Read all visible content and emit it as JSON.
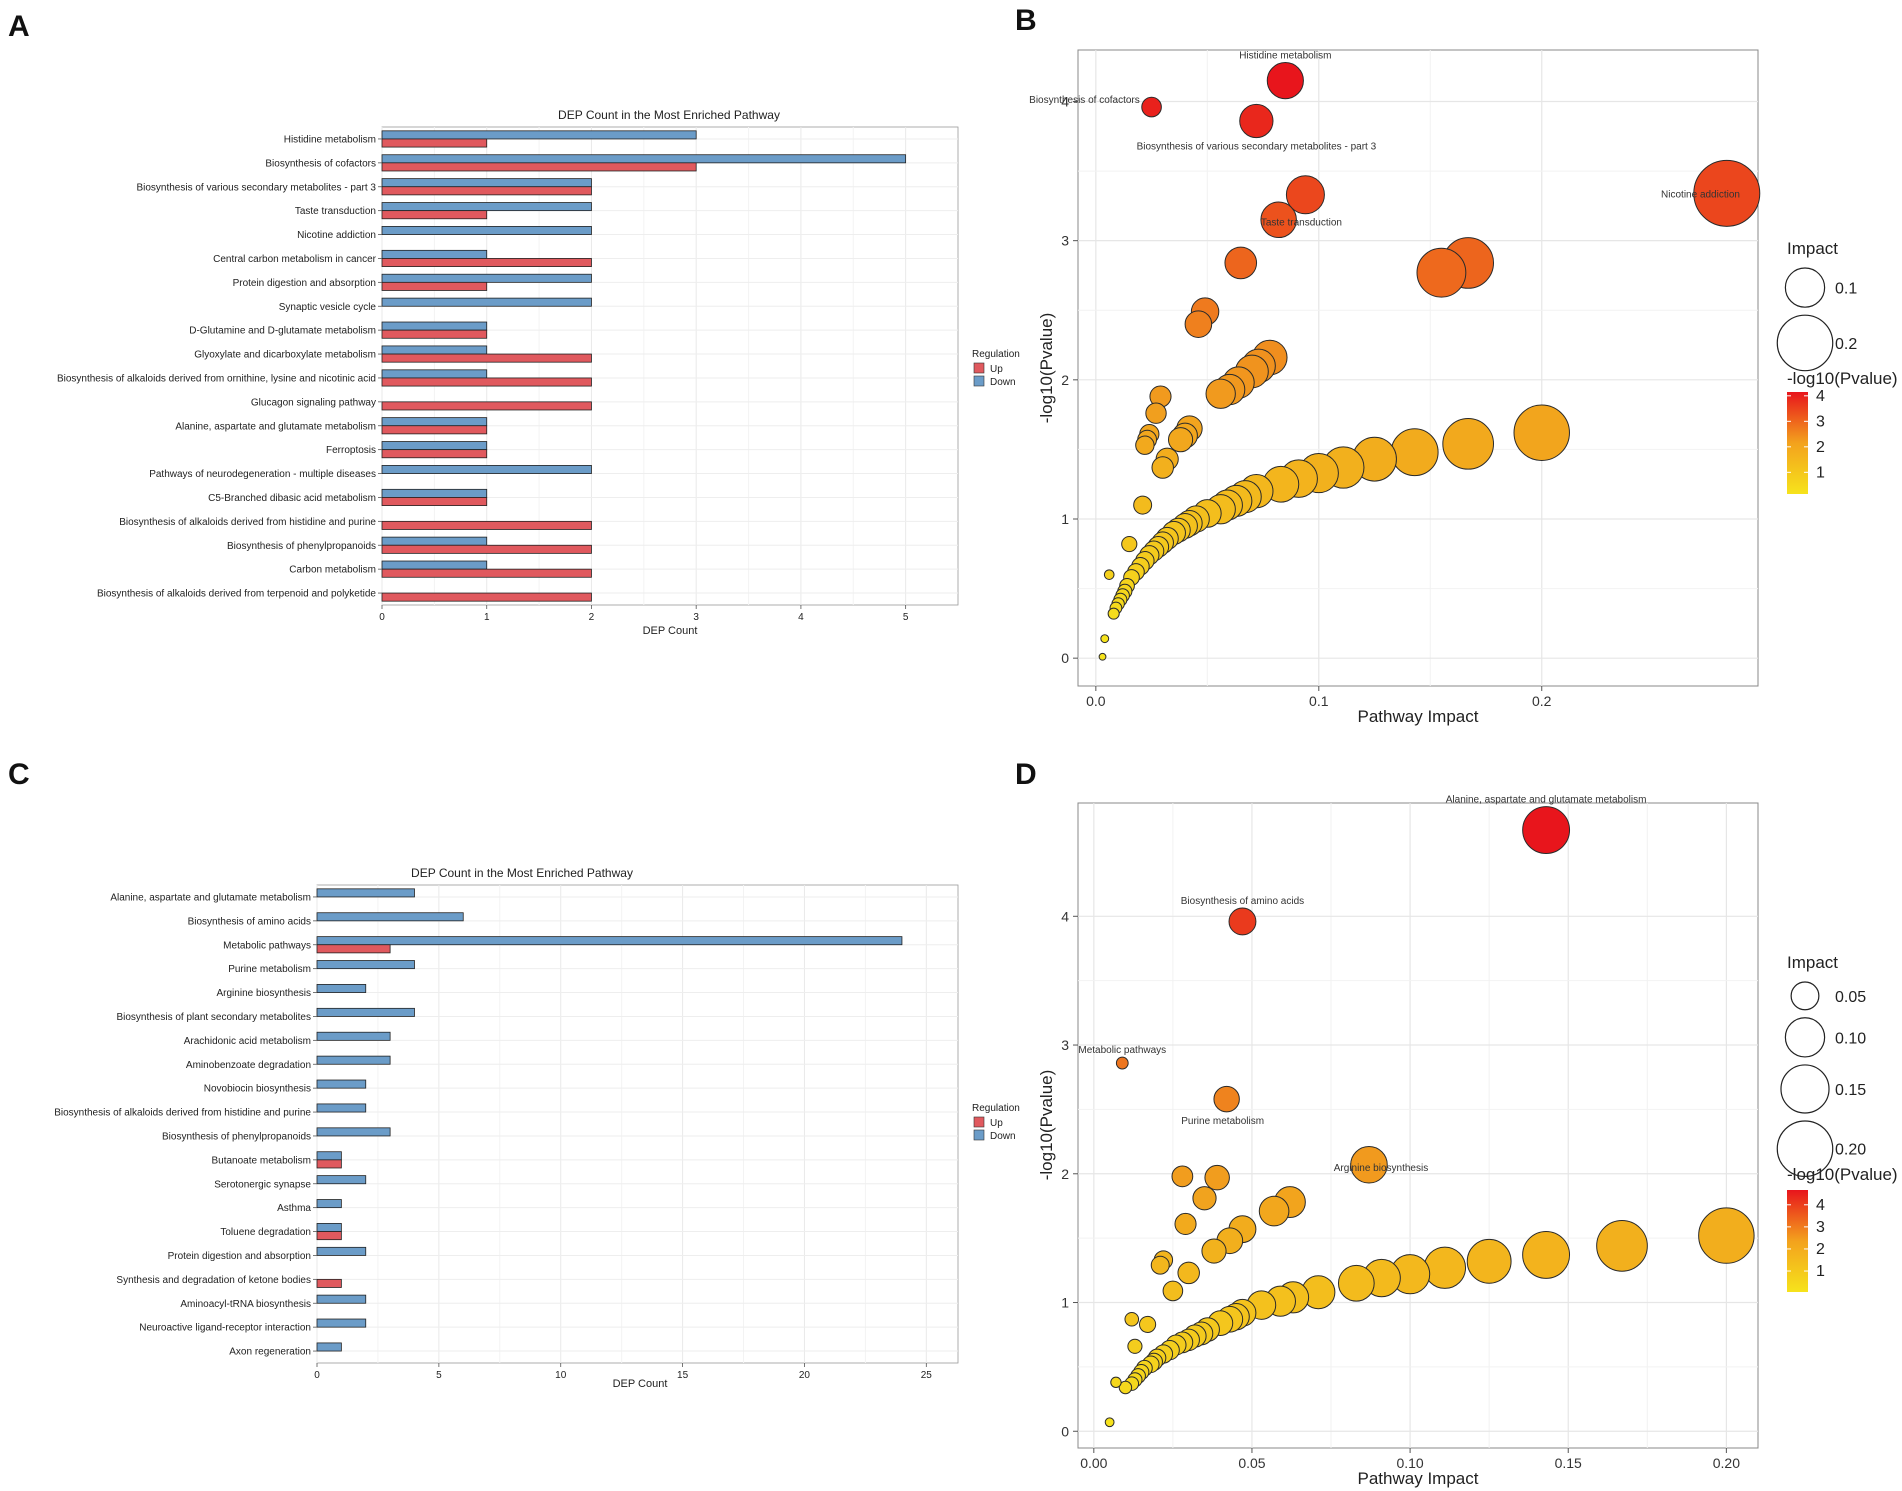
{
  "figure": {
    "panel_labels": [
      "A",
      "B",
      "C",
      "D"
    ]
  },
  "colors": {
    "up": "#e0595e",
    "down": "#6b9cc8",
    "bubble_high": "#e8151c",
    "bubble_mid": "#f08f1e",
    "bubble_low": "#f6e31c"
  },
  "chart_data": [
    {
      "panel": "A",
      "type": "bar",
      "orientation": "horizontal",
      "title": "DEP Count in the Most Enriched Pathway",
      "xlabel": "DEP Count",
      "ylabel": "",
      "xlim": [
        0,
        5.5
      ],
      "xticks": [
        0,
        1,
        2,
        3,
        4,
        5
      ],
      "legend": {
        "title": "Regulation",
        "entries": [
          "Up",
          "Down"
        ],
        "position": "right"
      },
      "categories": [
        "Histidine metabolism",
        "Biosynthesis of cofactors",
        "Biosynthesis of various secondary metabolites - part 3",
        "Taste transduction",
        "Nicotine addiction",
        "Central carbon metabolism in cancer",
        "Protein digestion and absorption",
        "Synaptic vesicle cycle",
        "D-Glutamine and D-glutamate metabolism",
        "Glyoxylate and dicarboxylate metabolism",
        "Biosynthesis of alkaloids derived from ornithine, lysine and nicotinic acid",
        "Glucagon signaling pathway",
        "Alanine, aspartate and glutamate metabolism",
        "Ferroptosis",
        "Pathways of neurodegeneration - multiple diseases",
        "C5-Branched dibasic acid metabolism",
        "Biosynthesis of alkaloids derived from histidine and purine",
        "Biosynthesis of phenylpropanoids",
        "Carbon metabolism",
        "Biosynthesis of alkaloids derived from terpenoid and polyketide"
      ],
      "series": [
        {
          "name": "Down",
          "values": [
            3,
            5,
            2,
            2,
            2,
            1,
            2,
            2,
            1,
            1,
            1,
            0,
            1,
            1,
            2,
            1,
            0,
            1,
            1,
            0
          ]
        },
        {
          "name": "Up",
          "values": [
            1,
            3,
            2,
            1,
            0,
            2,
            1,
            0,
            1,
            2,
            2,
            2,
            1,
            1,
            0,
            1,
            2,
            2,
            2,
            2
          ]
        }
      ]
    },
    {
      "panel": "B",
      "type": "scatter",
      "xlabel": "Pathway Impact",
      "ylabel": "-log10(Pvalue)",
      "xlim": [
        -0.008,
        0.297
      ],
      "ylim": [
        -0.2,
        4.37
      ],
      "xticks": [
        0.0,
        0.1,
        0.2
      ],
      "xtick_labels": [
        "0.0",
        "0.1",
        "0.2"
      ],
      "yticks": [
        0,
        1,
        2,
        3,
        4
      ],
      "size_legend": {
        "title": "Impact",
        "values": [
          0.1,
          0.2
        ],
        "labels": [
          "0.1",
          "0.2"
        ]
      },
      "color_legend": {
        "title": "-log10(Pvalue)",
        "ticks": [
          1,
          2,
          3,
          4
        ],
        "range": [
          0.15,
          4.15
        ]
      },
      "annotations": [
        {
          "label": "Histidine metabolism",
          "x": 0.085,
          "y": 4.15
        },
        {
          "label": "Biosynthesis of cofactors",
          "x": 0.025,
          "y": 3.96
        },
        {
          "label": "Biosynthesis of various secondary metabolites - part 3",
          "x": 0.072,
          "y": 3.86
        },
        {
          "label": "Taste transduction",
          "x": 0.094,
          "y": 3.33
        },
        {
          "label": "Nicotine addiction",
          "x": 0.283,
          "y": 3.34
        }
      ],
      "points": [
        {
          "x": 0.085,
          "y": 4.15
        },
        {
          "x": 0.025,
          "y": 3.96
        },
        {
          "x": 0.072,
          "y": 3.86
        },
        {
          "x": 0.283,
          "y": 3.34
        },
        {
          "x": 0.094,
          "y": 3.33
        },
        {
          "x": 0.082,
          "y": 3.15
        },
        {
          "x": 0.167,
          "y": 2.84
        },
        {
          "x": 0.065,
          "y": 2.84
        },
        {
          "x": 0.155,
          "y": 2.77
        },
        {
          "x": 0.049,
          "y": 2.49
        },
        {
          "x": 0.046,
          "y": 2.4
        },
        {
          "x": 0.078,
          "y": 2.16
        },
        {
          "x": 0.073,
          "y": 2.1
        },
        {
          "x": 0.07,
          "y": 2.06
        },
        {
          "x": 0.064,
          "y": 1.98
        },
        {
          "x": 0.06,
          "y": 1.93
        },
        {
          "x": 0.056,
          "y": 1.9
        },
        {
          "x": 0.029,
          "y": 1.88
        },
        {
          "x": 0.027,
          "y": 1.76
        },
        {
          "x": 0.042,
          "y": 1.65
        },
        {
          "x": 0.04,
          "y": 1.6
        },
        {
          "x": 0.038,
          "y": 1.57
        },
        {
          "x": 0.024,
          "y": 1.61
        },
        {
          "x": 0.023,
          "y": 1.57
        },
        {
          "x": 0.022,
          "y": 1.53
        },
        {
          "x": 0.2,
          "y": 1.62
        },
        {
          "x": 0.167,
          "y": 1.54
        },
        {
          "x": 0.143,
          "y": 1.48
        },
        {
          "x": 0.032,
          "y": 1.43
        },
        {
          "x": 0.125,
          "y": 1.43
        },
        {
          "x": 0.111,
          "y": 1.37
        },
        {
          "x": 0.03,
          "y": 1.37
        },
        {
          "x": 0.1,
          "y": 1.33
        },
        {
          "x": 0.091,
          "y": 1.29
        },
        {
          "x": 0.083,
          "y": 1.25
        },
        {
          "x": 0.072,
          "y": 1.2
        },
        {
          "x": 0.067,
          "y": 1.16
        },
        {
          "x": 0.063,
          "y": 1.13
        },
        {
          "x": 0.059,
          "y": 1.1
        },
        {
          "x": 0.056,
          "y": 1.07
        },
        {
          "x": 0.021,
          "y": 1.1
        },
        {
          "x": 0.05,
          "y": 1.04
        },
        {
          "x": 0.045,
          "y": 1.0
        },
        {
          "x": 0.042,
          "y": 0.97
        },
        {
          "x": 0.04,
          "y": 0.95
        },
        {
          "x": 0.037,
          "y": 0.92
        },
        {
          "x": 0.035,
          "y": 0.9
        },
        {
          "x": 0.032,
          "y": 0.86
        },
        {
          "x": 0.03,
          "y": 0.83
        },
        {
          "x": 0.015,
          "y": 0.82
        },
        {
          "x": 0.028,
          "y": 0.8
        },
        {
          "x": 0.026,
          "y": 0.77
        },
        {
          "x": 0.024,
          "y": 0.74
        },
        {
          "x": 0.022,
          "y": 0.7
        },
        {
          "x": 0.02,
          "y": 0.66
        },
        {
          "x": 0.018,
          "y": 0.62
        },
        {
          "x": 0.016,
          "y": 0.58
        },
        {
          "x": 0.006,
          "y": 0.6
        },
        {
          "x": 0.014,
          "y": 0.52
        },
        {
          "x": 0.013,
          "y": 0.48
        },
        {
          "x": 0.012,
          "y": 0.45
        },
        {
          "x": 0.011,
          "y": 0.42
        },
        {
          "x": 0.01,
          "y": 0.39
        },
        {
          "x": 0.009,
          "y": 0.36
        },
        {
          "x": 0.008,
          "y": 0.32
        },
        {
          "x": 0.004,
          "y": 0.14
        },
        {
          "x": 0.003,
          "y": 0.01
        }
      ]
    },
    {
      "panel": "C",
      "type": "bar",
      "orientation": "horizontal",
      "title": "DEP Count in the Most Enriched Pathway",
      "xlabel": "DEP Count",
      "ylabel": "",
      "xlim": [
        0,
        26.3
      ],
      "xticks": [
        0,
        5,
        10,
        15,
        20,
        25
      ],
      "legend": {
        "title": "Regulation",
        "entries": [
          "Up",
          "Down"
        ],
        "position": "right"
      },
      "categories": [
        "Alanine, aspartate and glutamate metabolism",
        "Biosynthesis of amino acids",
        "Metabolic pathways",
        "Purine metabolism",
        "Arginine biosynthesis",
        "Biosynthesis of plant secondary metabolites",
        "Arachidonic acid metabolism",
        "Aminobenzoate degradation",
        "Novobiocin biosynthesis",
        "Biosynthesis of alkaloids derived from histidine and purine",
        "Biosynthesis of phenylpropanoids",
        "Butanoate metabolism",
        "Serotonergic synapse",
        "Asthma",
        "Toluene degradation",
        "Protein digestion and absorption",
        "Synthesis and degradation of ketone bodies",
        "Aminoacyl-tRNA biosynthesis",
        "Neuroactive ligand-receptor interaction",
        "Axon regeneration"
      ],
      "series": [
        {
          "name": "Down",
          "values": [
            4,
            6,
            24,
            4,
            2,
            4,
            3,
            3,
            2,
            2,
            3,
            1,
            2,
            1,
            1,
            2,
            0,
            2,
            2,
            1
          ]
        },
        {
          "name": "Up",
          "values": [
            0,
            0,
            3,
            0,
            0,
            0,
            0,
            0,
            0,
            0,
            0,
            1,
            0,
            0,
            1,
            0,
            1,
            0,
            0,
            0
          ]
        }
      ]
    },
    {
      "panel": "D",
      "type": "scatter",
      "xlabel": "Pathway Impact",
      "ylabel": "-log10(Pvalue)",
      "xlim": [
        -0.005,
        0.21
      ],
      "ylim": [
        -0.13,
        4.88
      ],
      "xticks": [
        0.0,
        0.05,
        0.1,
        0.15,
        0.2
      ],
      "xtick_labels": [
        "0.00",
        "0.05",
        "0.10",
        "0.15",
        "0.20"
      ],
      "yticks": [
        0,
        1,
        2,
        3,
        4
      ],
      "size_legend": {
        "title": "Impact",
        "values": [
          0.05,
          0.1,
          0.15,
          0.2
        ],
        "labels": [
          "0.05",
          "0.10",
          "0.15",
          "0.20"
        ]
      },
      "color_legend": {
        "title": "-log10(Pvalue)",
        "ticks": [
          1,
          2,
          3,
          4
        ],
        "range": [
          0.05,
          4.67
        ]
      },
      "annotations": [
        {
          "label": "Alanine, aspartate and glutamate metabolism",
          "x": 0.143,
          "y": 4.67
        },
        {
          "label": "Biosynthesis of amino acids",
          "x": 0.047,
          "y": 3.96
        },
        {
          "label": "Metabolic pathways",
          "x": 0.009,
          "y": 2.86
        },
        {
          "label": "Purine metabolism",
          "x": 0.042,
          "y": 2.58
        },
        {
          "label": "Arginine biosynthesis",
          "x": 0.087,
          "y": 2.07
        }
      ],
      "points": [
        {
          "x": 0.143,
          "y": 4.67
        },
        {
          "x": 0.047,
          "y": 3.96
        },
        {
          "x": 0.009,
          "y": 2.86
        },
        {
          "x": 0.042,
          "y": 2.58
        },
        {
          "x": 0.087,
          "y": 2.07
        },
        {
          "x": 0.028,
          "y": 1.98
        },
        {
          "x": 0.039,
          "y": 1.97
        },
        {
          "x": 0.035,
          "y": 1.81
        },
        {
          "x": 0.062,
          "y": 1.78
        },
        {
          "x": 0.057,
          "y": 1.71
        },
        {
          "x": 0.029,
          "y": 1.61
        },
        {
          "x": 0.047,
          "y": 1.57
        },
        {
          "x": 0.2,
          "y": 1.52
        },
        {
          "x": 0.043,
          "y": 1.48
        },
        {
          "x": 0.167,
          "y": 1.44
        },
        {
          "x": 0.038,
          "y": 1.4
        },
        {
          "x": 0.143,
          "y": 1.37
        },
        {
          "x": 0.022,
          "y": 1.33
        },
        {
          "x": 0.125,
          "y": 1.32
        },
        {
          "x": 0.021,
          "y": 1.29
        },
        {
          "x": 0.111,
          "y": 1.27
        },
        {
          "x": 0.03,
          "y": 1.23
        },
        {
          "x": 0.1,
          "y": 1.22
        },
        {
          "x": 0.091,
          "y": 1.19
        },
        {
          "x": 0.083,
          "y": 1.15
        },
        {
          "x": 0.025,
          "y": 1.09
        },
        {
          "x": 0.071,
          "y": 1.08
        },
        {
          "x": 0.063,
          "y": 1.04
        },
        {
          "x": 0.059,
          "y": 1.01
        },
        {
          "x": 0.053,
          "y": 0.98
        },
        {
          "x": 0.047,
          "y": 0.92
        },
        {
          "x": 0.045,
          "y": 0.89
        },
        {
          "x": 0.012,
          "y": 0.87
        },
        {
          "x": 0.043,
          "y": 0.87
        },
        {
          "x": 0.04,
          "y": 0.84
        },
        {
          "x": 0.017,
          "y": 0.83
        },
        {
          "x": 0.036,
          "y": 0.79
        },
        {
          "x": 0.034,
          "y": 0.76
        },
        {
          "x": 0.032,
          "y": 0.74
        },
        {
          "x": 0.03,
          "y": 0.71
        },
        {
          "x": 0.028,
          "y": 0.69
        },
        {
          "x": 0.026,
          "y": 0.67
        },
        {
          "x": 0.013,
          "y": 0.66
        },
        {
          "x": 0.024,
          "y": 0.63
        },
        {
          "x": 0.022,
          "y": 0.6
        },
        {
          "x": 0.02,
          "y": 0.57
        },
        {
          "x": 0.019,
          "y": 0.54
        },
        {
          "x": 0.018,
          "y": 0.52
        },
        {
          "x": 0.016,
          "y": 0.49
        },
        {
          "x": 0.015,
          "y": 0.46
        },
        {
          "x": 0.014,
          "y": 0.43
        },
        {
          "x": 0.013,
          "y": 0.4
        },
        {
          "x": 0.012,
          "y": 0.37
        },
        {
          "x": 0.007,
          "y": 0.38
        },
        {
          "x": 0.01,
          "y": 0.34
        },
        {
          "x": 0.005,
          "y": 0.07
        }
      ]
    }
  ]
}
